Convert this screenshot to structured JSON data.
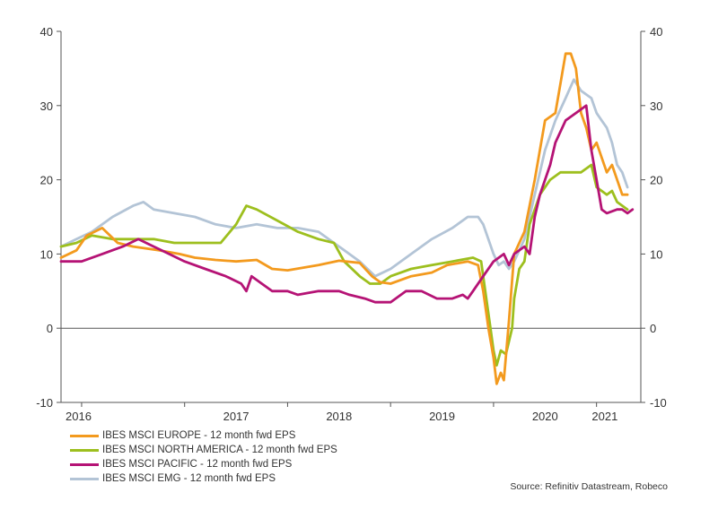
{
  "chart_data": {
    "type": "line",
    "y_range": [
      -10,
      40
    ],
    "y_ticks": [
      "40",
      "30",
      "20",
      "10",
      "0",
      "-10"
    ],
    "x_range": [
      2015.8,
      2021.43
    ],
    "x_tick_labels": [
      "2016",
      "2017",
      "2018",
      "2019",
      "2020",
      "2021"
    ],
    "series": [
      {
        "name": "IBES MSCI EUROPE - 12 month fwd EPS",
        "color": "#F39A1E",
        "points": [
          [
            2015.8,
            9.5
          ],
          [
            2015.95,
            10.5
          ],
          [
            2016.05,
            12.5
          ],
          [
            2016.2,
            13.5
          ],
          [
            2016.35,
            11.5
          ],
          [
            2016.5,
            11
          ],
          [
            2016.75,
            10.5
          ],
          [
            2016.95,
            10
          ],
          [
            2017.1,
            9.5
          ],
          [
            2017.3,
            9.2
          ],
          [
            2017.5,
            9
          ],
          [
            2017.7,
            9.2
          ],
          [
            2017.85,
            8
          ],
          [
            2018.0,
            7.8
          ],
          [
            2018.3,
            8.5
          ],
          [
            2018.5,
            9.1
          ],
          [
            2018.7,
            8.8
          ],
          [
            2018.82,
            7
          ],
          [
            2018.9,
            6.2
          ],
          [
            2019.0,
            6
          ],
          [
            2019.2,
            7
          ],
          [
            2019.4,
            7.5
          ],
          [
            2019.55,
            8.5
          ],
          [
            2019.75,
            9
          ],
          [
            2019.85,
            8.5
          ],
          [
            2019.9,
            5
          ],
          [
            2019.95,
            0
          ],
          [
            2020.0,
            -4
          ],
          [
            2020.03,
            -7.5
          ],
          [
            2020.07,
            -6
          ],
          [
            2020.1,
            -7
          ],
          [
            2020.15,
            1
          ],
          [
            2020.2,
            10
          ],
          [
            2020.3,
            13
          ],
          [
            2020.4,
            20
          ],
          [
            2020.5,
            28
          ],
          [
            2020.6,
            29
          ],
          [
            2020.65,
            33
          ],
          [
            2020.7,
            37
          ],
          [
            2020.75,
            37
          ],
          [
            2020.8,
            35
          ],
          [
            2020.85,
            29
          ],
          [
            2020.9,
            27
          ],
          [
            2020.95,
            24
          ],
          [
            2021.0,
            25
          ],
          [
            2021.05,
            23
          ],
          [
            2021.1,
            21
          ],
          [
            2021.15,
            22
          ],
          [
            2021.2,
            20
          ],
          [
            2021.25,
            18
          ],
          [
            2021.3,
            18
          ]
        ]
      },
      {
        "name": "IBES MSCI NORTH AMERICA - 12 month fwd EPS",
        "color": "#9DBF1E",
        "points": [
          [
            2015.8,
            11
          ],
          [
            2015.95,
            11.5
          ],
          [
            2016.1,
            12.5
          ],
          [
            2016.3,
            12
          ],
          [
            2016.5,
            12
          ],
          [
            2016.7,
            12
          ],
          [
            2016.9,
            11.5
          ],
          [
            2017.1,
            11.5
          ],
          [
            2017.35,
            11.5
          ],
          [
            2017.5,
            14
          ],
          [
            2017.6,
            16.5
          ],
          [
            2017.7,
            16
          ],
          [
            2017.9,
            14.5
          ],
          [
            2018.1,
            13
          ],
          [
            2018.3,
            12
          ],
          [
            2018.45,
            11.5
          ],
          [
            2018.55,
            9
          ],
          [
            2018.7,
            7
          ],
          [
            2018.8,
            6
          ],
          [
            2018.9,
            6
          ],
          [
            2019.0,
            7
          ],
          [
            2019.2,
            8
          ],
          [
            2019.4,
            8.5
          ],
          [
            2019.6,
            9
          ],
          [
            2019.8,
            9.5
          ],
          [
            2019.88,
            9
          ],
          [
            2019.92,
            5
          ],
          [
            2019.97,
            0
          ],
          [
            2020.0,
            -3
          ],
          [
            2020.03,
            -5
          ],
          [
            2020.07,
            -3
          ],
          [
            2020.12,
            -3.5
          ],
          [
            2020.18,
            0
          ],
          [
            2020.2,
            4
          ],
          [
            2020.25,
            8
          ],
          [
            2020.3,
            9
          ],
          [
            2020.35,
            14
          ],
          [
            2020.45,
            18
          ],
          [
            2020.55,
            20
          ],
          [
            2020.65,
            21
          ],
          [
            2020.75,
            21
          ],
          [
            2020.85,
            21
          ],
          [
            2020.95,
            22
          ],
          [
            2021.0,
            19
          ],
          [
            2021.05,
            18.5
          ],
          [
            2021.1,
            18
          ],
          [
            2021.15,
            18.5
          ],
          [
            2021.2,
            17
          ],
          [
            2021.3,
            16
          ]
        ]
      },
      {
        "name": "IBES MSCI PACIFIC - 12 month fwd EPS",
        "color": "#B51375",
        "points": [
          [
            2015.8,
            9
          ],
          [
            2016.0,
            9
          ],
          [
            2016.2,
            10
          ],
          [
            2016.4,
            11
          ],
          [
            2016.55,
            12
          ],
          [
            2016.7,
            11
          ],
          [
            2016.85,
            10
          ],
          [
            2017.0,
            9
          ],
          [
            2017.2,
            8
          ],
          [
            2017.4,
            7
          ],
          [
            2017.55,
            6
          ],
          [
            2017.6,
            5
          ],
          [
            2017.65,
            7
          ],
          [
            2017.75,
            6
          ],
          [
            2017.85,
            5
          ],
          [
            2018.0,
            5
          ],
          [
            2018.1,
            4.5
          ],
          [
            2018.3,
            5
          ],
          [
            2018.5,
            5
          ],
          [
            2018.6,
            4.5
          ],
          [
            2018.75,
            4
          ],
          [
            2018.85,
            3.5
          ],
          [
            2019.0,
            3.5
          ],
          [
            2019.15,
            5
          ],
          [
            2019.3,
            5
          ],
          [
            2019.45,
            4
          ],
          [
            2019.6,
            4
          ],
          [
            2019.7,
            4.5
          ],
          [
            2019.75,
            4
          ],
          [
            2019.8,
            5
          ],
          [
            2019.9,
            7
          ],
          [
            2020.0,
            9
          ],
          [
            2020.1,
            10
          ],
          [
            2020.15,
            8.5
          ],
          [
            2020.2,
            10
          ],
          [
            2020.3,
            11
          ],
          [
            2020.35,
            10
          ],
          [
            2020.4,
            15
          ],
          [
            2020.45,
            18
          ],
          [
            2020.55,
            22
          ],
          [
            2020.6,
            25
          ],
          [
            2020.7,
            28
          ],
          [
            2020.8,
            29
          ],
          [
            2020.9,
            30
          ],
          [
            2020.95,
            24
          ],
          [
            2021.0,
            20
          ],
          [
            2021.05,
            16
          ],
          [
            2021.1,
            15.5
          ],
          [
            2021.2,
            16
          ],
          [
            2021.25,
            16
          ],
          [
            2021.3,
            15.5
          ],
          [
            2021.35,
            16
          ]
        ]
      },
      {
        "name": "IBES MSCI EMG - 12 month fwd EPS",
        "color": "#B3C4D6",
        "points": [
          [
            2015.8,
            11
          ],
          [
            2015.95,
            12
          ],
          [
            2016.1,
            13
          ],
          [
            2016.3,
            15
          ],
          [
            2016.5,
            16.5
          ],
          [
            2016.6,
            17
          ],
          [
            2016.7,
            16
          ],
          [
            2016.9,
            15.5
          ],
          [
            2017.1,
            15
          ],
          [
            2017.3,
            14
          ],
          [
            2017.5,
            13.5
          ],
          [
            2017.7,
            14
          ],
          [
            2017.9,
            13.5
          ],
          [
            2018.1,
            13.5
          ],
          [
            2018.3,
            13
          ],
          [
            2018.5,
            11
          ],
          [
            2018.7,
            9
          ],
          [
            2018.85,
            7
          ],
          [
            2019.0,
            8
          ],
          [
            2019.2,
            10
          ],
          [
            2019.4,
            12
          ],
          [
            2019.6,
            13.5
          ],
          [
            2019.75,
            15
          ],
          [
            2019.85,
            15
          ],
          [
            2019.9,
            14
          ],
          [
            2020.0,
            10
          ],
          [
            2020.05,
            8.5
          ],
          [
            2020.1,
            9
          ],
          [
            2020.15,
            8
          ],
          [
            2020.2,
            9
          ],
          [
            2020.3,
            12
          ],
          [
            2020.4,
            18
          ],
          [
            2020.5,
            24
          ],
          [
            2020.6,
            28
          ],
          [
            2020.7,
            31
          ],
          [
            2020.78,
            33.5
          ],
          [
            2020.85,
            32
          ],
          [
            2020.95,
            31
          ],
          [
            2021.0,
            29
          ],
          [
            2021.05,
            28
          ],
          [
            2021.1,
            27
          ],
          [
            2021.15,
            25
          ],
          [
            2021.2,
            22
          ],
          [
            2021.25,
            21
          ],
          [
            2021.3,
            19
          ]
        ]
      }
    ]
  },
  "legend": [
    {
      "label": "IBES MSCI EUROPE - 12 month fwd EPS",
      "color": "#F39A1E"
    },
    {
      "label": "IBES MSCI NORTH AMERICA - 12 month fwd EPS",
      "color": "#9DBF1E"
    },
    {
      "label": "IBES MSCI PACIFIC - 12 month fwd EPS",
      "color": "#B51375"
    },
    {
      "label": "IBES MSCI EMG - 12 month fwd EPS",
      "color": "#B3C4D6"
    }
  ],
  "source": "Source: Refinitiv Datastream, Robeco"
}
